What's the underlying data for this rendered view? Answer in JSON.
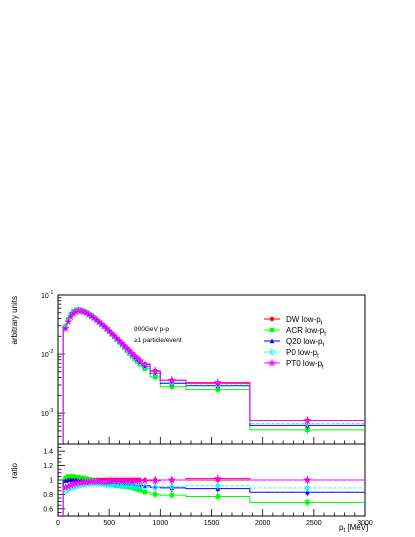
{
  "chart_data": [
    {
      "type": "line",
      "panel": "main",
      "ylabel": "arbitrary units",
      "yscale": "log",
      "ylim": [
        0.0003,
        0.1
      ],
      "xlim": [
        0,
        3000
      ],
      "ytick_labels": [
        "10",
        "10",
        "10"
      ],
      "ytick_exponents": [
        "-1",
        "-2",
        "-3"
      ],
      "annotations": [
        "900GeV p-p",
        "≥1 particle/event"
      ],
      "legend_position": "top-right",
      "x": [
        75,
        100,
        125,
        150,
        175,
        200,
        225,
        250,
        275,
        300,
        325,
        350,
        375,
        400,
        425,
        450,
        475,
        500,
        525,
        550,
        575,
        600,
        625,
        650,
        675,
        700,
        725,
        750,
        775,
        800,
        850,
        950,
        1112,
        1562,
        2437
      ],
      "x_edges": [
        50,
        87.5,
        112.5,
        137.5,
        162.5,
        187.5,
        212.5,
        237.5,
        262.5,
        287.5,
        312.5,
        337.5,
        362.5,
        387.5,
        412.5,
        437.5,
        462.5,
        487.5,
        512.5,
        537.5,
        562.5,
        587.5,
        612.5,
        637.5,
        662.5,
        687.5,
        712.5,
        737.5,
        762.5,
        787.5,
        825,
        900,
        1000,
        1250,
        1875,
        3000
      ],
      "series": [
        {
          "name": "DW low-p",
          "subscript": "t",
          "color": "#ff0000",
          "marker": "circle",
          "values": [
            0.029,
            0.038,
            0.046,
            0.052,
            0.055,
            0.056,
            0.055,
            0.053,
            0.051,
            0.048,
            0.045,
            0.042,
            0.039,
            0.036,
            0.033,
            0.03,
            0.0275,
            0.025,
            0.0225,
            0.0205,
            0.0185,
            0.0168,
            0.0152,
            0.0138,
            0.0125,
            0.0113,
            0.0102,
            0.0093,
            0.0085,
            0.0078,
            0.0068,
            0.0052,
            0.0036,
            0.0032,
            0.00075
          ]
        },
        {
          "name": "ACR low-p",
          "subscript": "t",
          "color": "#00ff00",
          "marker": "square",
          "values": [
            0.03,
            0.039,
            0.047,
            0.053,
            0.056,
            0.057,
            0.056,
            0.054,
            0.051,
            0.048,
            0.045,
            0.042,
            0.038,
            0.035,
            0.032,
            0.029,
            0.0265,
            0.024,
            0.0215,
            0.0195,
            0.0175,
            0.0157,
            0.0141,
            0.0127,
            0.0114,
            0.0102,
            0.0091,
            0.0082,
            0.0074,
            0.0067,
            0.0056,
            0.0041,
            0.0028,
            0.0025,
            0.00052
          ]
        },
        {
          "name": "Q20 low-p",
          "subscript": "t",
          "color": "#0000ff",
          "marker": "triangle",
          "values": [
            0.029,
            0.038,
            0.046,
            0.052,
            0.055,
            0.056,
            0.055,
            0.053,
            0.05,
            0.047,
            0.044,
            0.041,
            0.038,
            0.035,
            0.032,
            0.0295,
            0.027,
            0.0245,
            0.022,
            0.02,
            0.018,
            0.0163,
            0.0147,
            0.0133,
            0.012,
            0.0108,
            0.0097,
            0.0088,
            0.008,
            0.0073,
            0.0062,
            0.0047,
            0.0032,
            0.0029,
            0.00062
          ]
        },
        {
          "name": "P0 low-p",
          "subscript": "t",
          "color": "#00ffff",
          "marker": "diamond",
          "values": [
            0.028,
            0.036,
            0.044,
            0.05,
            0.053,
            0.055,
            0.054,
            0.052,
            0.05,
            0.047,
            0.044,
            0.041,
            0.038,
            0.035,
            0.032,
            0.0292,
            0.0267,
            0.0242,
            0.0218,
            0.0198,
            0.0179,
            0.0162,
            0.0146,
            0.0132,
            0.0119,
            0.0107,
            0.0096,
            0.0087,
            0.0079,
            0.0072,
            0.0061,
            0.0047,
            0.0033,
            0.003,
            0.00067
          ]
        },
        {
          "name": "PT0 low-p",
          "subscript": "t",
          "color": "#ff00ff",
          "marker": "star",
          "values": [
            0.027,
            0.035,
            0.043,
            0.049,
            0.052,
            0.054,
            0.054,
            0.052,
            0.05,
            0.047,
            0.044,
            0.041,
            0.038,
            0.035,
            0.032,
            0.0295,
            0.027,
            0.0246,
            0.0223,
            0.0203,
            0.0184,
            0.0167,
            0.0151,
            0.0137,
            0.0124,
            0.0112,
            0.0101,
            0.0092,
            0.0084,
            0.0077,
            0.0066,
            0.0051,
            0.0036,
            0.0033,
            0.00075
          ]
        }
      ]
    },
    {
      "type": "line",
      "panel": "ratio",
      "ylabel": "ratio",
      "xlabel": "p",
      "xlabel_subscript": "t",
      "xlabel_unit": " [MeV]",
      "ylim": [
        0.5,
        1.5
      ],
      "xlim": [
        0,
        3000
      ],
      "ytick_labels": [
        "1.4",
        "1.2",
        "1",
        "0.8",
        "0.6"
      ],
      "xtick_labels": [
        "0",
        "500",
        "1000",
        "1500",
        "2000",
        "2500",
        "3000"
      ],
      "x": [
        75,
        100,
        125,
        150,
        175,
        200,
        225,
        250,
        275,
        300,
        325,
        350,
        375,
        400,
        425,
        450,
        475,
        500,
        525,
        550,
        575,
        600,
        625,
        650,
        675,
        700,
        725,
        750,
        775,
        800,
        850,
        950,
        1112,
        1562,
        2437
      ],
      "series": [
        {
          "name": "DW low-p",
          "subscript": "t",
          "color": "#ff0000",
          "marker": "circle",
          "values": [
            1,
            1,
            1,
            1,
            1,
            1,
            1,
            1,
            1,
            1,
            1,
            1,
            1,
            1,
            1,
            1,
            1,
            1,
            1,
            1,
            1,
            1,
            1,
            1,
            1,
            1,
            1,
            1,
            1,
            1,
            1,
            1,
            1,
            1,
            1
          ]
        },
        {
          "name": "ACR low-p",
          "subscript": "t",
          "color": "#00ff00",
          "marker": "square",
          "values": [
            1.03,
            1.05,
            1.05,
            1.05,
            1.04,
            1.04,
            1.03,
            1.03,
            1.02,
            1.01,
            1.0,
            0.99,
            0.98,
            0.97,
            0.96,
            0.95,
            0.95,
            0.94,
            0.93,
            0.93,
            0.92,
            0.92,
            0.91,
            0.91,
            0.9,
            0.9,
            0.89,
            0.88,
            0.87,
            0.86,
            0.83,
            0.8,
            0.79,
            0.77,
            0.69
          ]
        },
        {
          "name": "Q20 low-p",
          "subscript": "t",
          "color": "#0000ff",
          "marker": "triangle",
          "values": [
            0.99,
            1.0,
            1.0,
            1.0,
            1.0,
            0.99,
            0.99,
            0.99,
            0.98,
            0.98,
            0.98,
            0.97,
            0.97,
            0.97,
            0.97,
            0.97,
            0.96,
            0.96,
            0.96,
            0.96,
            0.95,
            0.95,
            0.95,
            0.95,
            0.94,
            0.94,
            0.94,
            0.93,
            0.93,
            0.93,
            0.92,
            0.9,
            0.89,
            0.88,
            0.83
          ]
        },
        {
          "name": "P0 low-p",
          "subscript": "t",
          "color": "#00ffff",
          "marker": "diamond",
          "values": [
            0.85,
            0.87,
            0.89,
            0.9,
            0.91,
            0.92,
            0.93,
            0.94,
            0.94,
            0.95,
            0.95,
            0.95,
            0.95,
            0.95,
            0.95,
            0.94,
            0.94,
            0.94,
            0.94,
            0.93,
            0.93,
            0.93,
            0.92,
            0.92,
            0.92,
            0.92,
            0.91,
            0.91,
            0.91,
            0.91,
            0.9,
            0.9,
            0.91,
            0.92,
            0.89
          ]
        },
        {
          "name": "PT0 low-p",
          "subscript": "t",
          "color": "#ff00ff",
          "marker": "star",
          "values": [
            0.9,
            0.91,
            0.93,
            0.94,
            0.95,
            0.96,
            0.96,
            0.97,
            0.97,
            0.97,
            0.98,
            0.98,
            0.98,
            0.98,
            0.98,
            0.98,
            0.98,
            0.99,
            0.99,
            0.99,
            0.99,
            0.99,
            0.99,
            0.99,
            0.99,
            0.99,
            0.99,
            0.99,
            0.99,
            0.99,
            0.99,
            0.99,
            1.0,
            1.02,
            1.0
          ]
        }
      ]
    }
  ]
}
